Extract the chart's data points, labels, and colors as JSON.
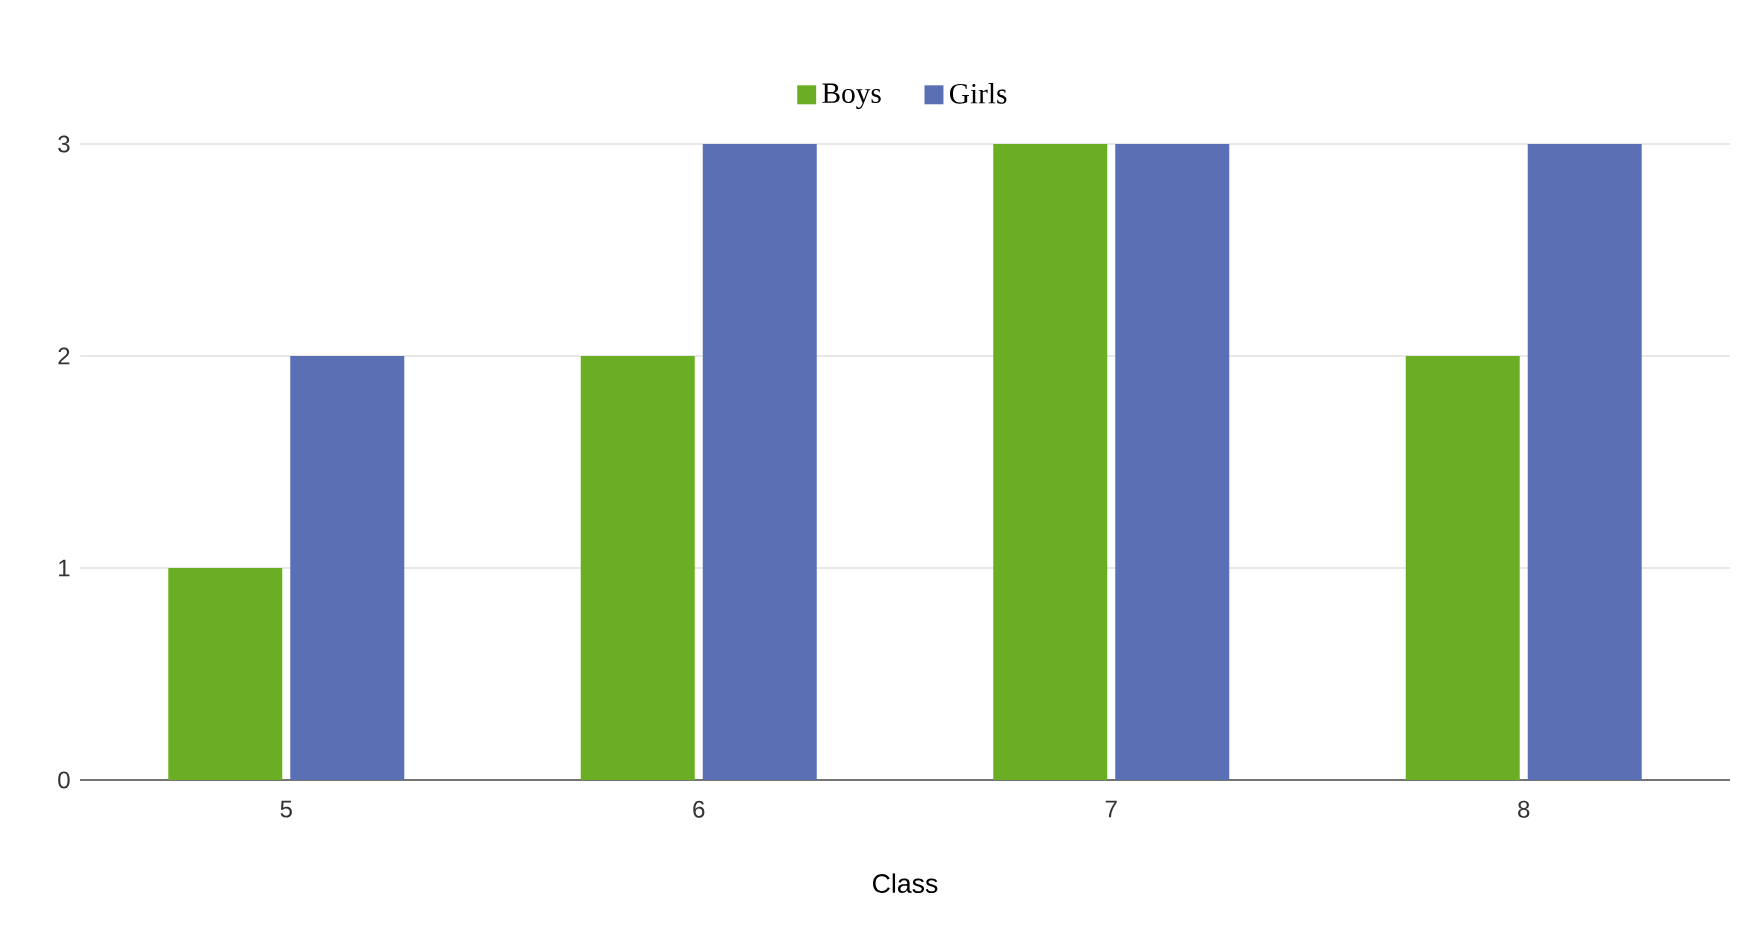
{
  "chart_data": {
    "type": "bar",
    "xlabel": "Class",
    "categories": [
      "5",
      "6",
      "7",
      "8"
    ],
    "series": [
      {
        "name": "Boys",
        "color": "#6aaf23",
        "values": [
          1,
          2,
          3,
          2
        ]
      },
      {
        "name": "Girls",
        "color": "#5b6fb5",
        "values": [
          2,
          3,
          3,
          3
        ]
      }
    ],
    "ylim": [
      0,
      3
    ],
    "yticks": [
      0,
      1,
      2,
      3
    ],
    "grid": "y",
    "legend": "top"
  }
}
